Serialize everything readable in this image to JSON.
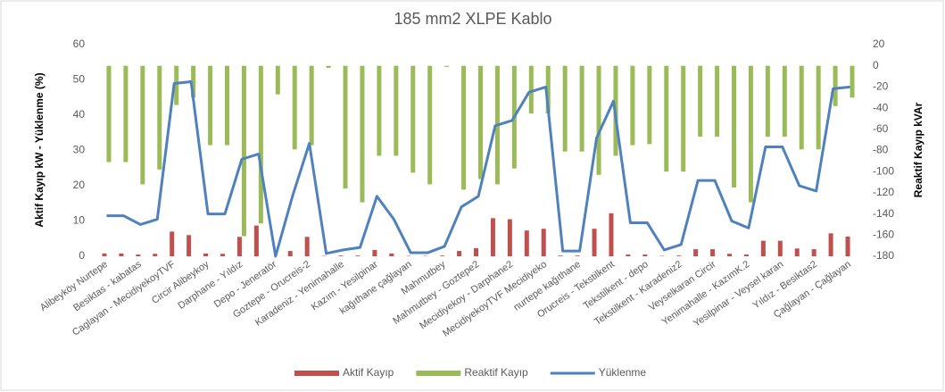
{
  "chart_data": {
    "type": "combo",
    "title": "185 mm2 XLPE Kablo",
    "y_label": "Aktif Kayıp kW  -  Yüklenme (%)",
    "y2_label": "Reaktif Kayıp kVAr",
    "categories": [
      "Alibeyköy Nurtepe",
      null,
      "Besiktas - kabatas",
      null,
      "Caglayan - MecidiyekoyTVF",
      null,
      "Circir Alibeykoy",
      null,
      "Darphane - Yıldız",
      null,
      "Depo - Jeneratör",
      null,
      "Goztepe - Orucreis-2",
      null,
      "Karadeniz - Yenimahalle",
      null,
      "Kazım - Yesilpinar",
      null,
      "kağıthane çağlayan",
      null,
      "Mahmutbey",
      null,
      "Mahmutbey - Goztepe2",
      null,
      "Mecidiyekoy - Darphane2",
      null,
      "MecidiyekoyTVF Mecidiyeko",
      null,
      "nurtepe kağıthane",
      null,
      "Orucreis - Tekstilkent",
      null,
      "Tekstilkent - depo",
      null,
      "Tekstilkent - Karadeniz2",
      null,
      "Veyselkaran Circir",
      null,
      "Yenimahalle - KazımK.2",
      null,
      "Yesilpinar - Veysel karan",
      null,
      "Yıldız - Besiktas2",
      null,
      "Çağlayan - Çağlayan"
    ],
    "series": [
      {
        "name": "Aktif Kayıp",
        "type": "bar",
        "color": "#c0504d",
        "values": [
          0.8,
          0.8,
          0.5,
          0.7,
          7,
          6,
          0.8,
          0.7,
          5.5,
          8.7,
          0,
          1.5,
          5.5,
          0.1,
          0.2,
          0.2,
          1.8,
          0.8,
          0.1,
          0.1,
          0.2,
          1.5,
          2.3,
          10.8,
          10.5,
          7.3,
          7.8,
          0.2,
          0.2,
          7.8,
          12.2,
          0.5,
          0.5,
          0.1,
          0.2,
          2,
          2,
          0.7,
          0.5,
          4.4,
          4.4,
          2.2,
          2,
          6.5,
          5.6
        ]
      },
      {
        "name": "Reaktif Kayıp",
        "type": "bar",
        "axis": "y2",
        "color": "#9bbb59",
        "values": [
          -91,
          -91,
          -112,
          -98,
          -37,
          -30,
          -75,
          -75,
          -161,
          -149,
          -27,
          -79,
          -75,
          -2,
          -116,
          -129,
          -85,
          -85,
          -101,
          -112,
          -1,
          -117,
          -107,
          -112,
          -97,
          -45,
          -45,
          -81,
          -81,
          -103,
          -85,
          -75,
          -74,
          -100,
          -100,
          -67,
          -67,
          -115,
          -129,
          -67,
          -67,
          -79,
          -79,
          -38,
          -30
        ]
      },
      {
        "name": "Yüklenme",
        "type": "line",
        "color": "#4f81bd",
        "values": [
          11.5,
          11.5,
          9,
          10.5,
          49,
          49.5,
          12,
          12,
          27.5,
          29,
          0,
          17,
          32,
          0.8,
          1.8,
          2.5,
          17,
          10.5,
          1,
          1,
          2.8,
          14,
          17,
          37,
          38.5,
          46.5,
          48,
          1.5,
          1.5,
          33.5,
          44,
          9.5,
          9.5,
          1.8,
          3.3,
          21.5,
          21.5,
          10,
          8,
          31,
          31,
          20,
          18.5,
          47.5,
          48
        ]
      }
    ],
    "ylim": [
      0,
      60
    ],
    "yticks": [
      0,
      10,
      20,
      30,
      40,
      50,
      60
    ],
    "y2lim": [
      -180,
      20
    ],
    "y2ticks": [
      20,
      0,
      -20,
      -40,
      -60,
      -80,
      -100,
      -120,
      -140,
      -160,
      -180
    ],
    "legend": "bottom"
  }
}
